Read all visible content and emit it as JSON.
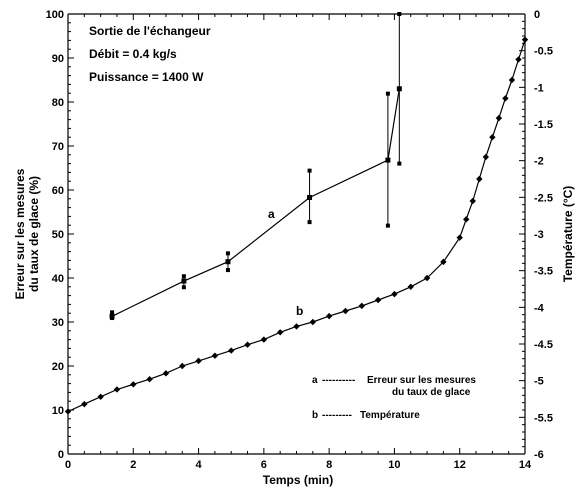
{
  "chart_data": {
    "type": "line",
    "annotations": [
      "Sortie de l'échangeur",
      "Débit = 0.4 kg/s",
      "Puissance = 1400 W"
    ],
    "xlabel": "Temps (min)",
    "ylabel": [
      "Erreur sur les mesures",
      "du taux de glace (%)"
    ],
    "y2label": "Température (°C)",
    "xlim": [
      0,
      14
    ],
    "ylim": [
      0,
      100
    ],
    "y2lim": [
      -6,
      0
    ],
    "x_ticks": [
      0,
      2,
      4,
      6,
      8,
      10,
      12,
      14
    ],
    "y_ticks": [
      0,
      10,
      20,
      30,
      40,
      50,
      60,
      70,
      80,
      90,
      100
    ],
    "y2_ticks": [
      0,
      -0.5,
      -1,
      -1.5,
      -2,
      -2.5,
      -3,
      -3.5,
      -4,
      -4.5,
      -5,
      -5.5,
      -6
    ],
    "grid": false,
    "series": [
      {
        "name": "a",
        "axis": "left",
        "x": [
          1.35,
          3.55,
          4.9,
          7.4,
          9.8,
          10.15
        ],
        "y": [
          31.3,
          39.3,
          43.7,
          58.3,
          66.8,
          83
        ],
        "err_low": [
          30.9,
          37.9,
          41.8,
          52.7,
          51.9,
          66
        ],
        "err_high": [
          32.2,
          40.4,
          45.6,
          64.4,
          81.9,
          100
        ]
      },
      {
        "name": "b",
        "axis": "right",
        "x": [
          0,
          0.5,
          1,
          1.5,
          2,
          2.5,
          3,
          3.5,
          4,
          4.5,
          5,
          5.5,
          6,
          6.5,
          7,
          7.5,
          8,
          8.5,
          9,
          9.5,
          10,
          10.5,
          11,
          11.5,
          12,
          12.2,
          12.4,
          12.6,
          12.8,
          13,
          13.2,
          13.4,
          13.6,
          13.8,
          14
        ],
        "y": [
          -5.42,
          -5.32,
          -5.22,
          -5.12,
          -5.05,
          -4.98,
          -4.9,
          -4.8,
          -4.73,
          -4.66,
          -4.59,
          -4.51,
          -4.44,
          -4.34,
          -4.26,
          -4.2,
          -4.12,
          -4.05,
          -3.98,
          -3.9,
          -3.82,
          -3.72,
          -3.6,
          -3.38,
          -3.05,
          -2.8,
          -2.55,
          -2.25,
          -1.95,
          -1.68,
          -1.42,
          -1.15,
          -0.9,
          -0.62,
          -0.35
        ]
      }
    ],
    "curve_labels": {
      "a": "a",
      "b": "b"
    },
    "legend": [
      {
        "key": "a",
        "dashes": "----------",
        "text": [
          "Erreur sur les mesures",
          "du taux de glace"
        ]
      },
      {
        "key": "b",
        "dashes": "---------",
        "text": [
          "Température"
        ]
      }
    ]
  }
}
